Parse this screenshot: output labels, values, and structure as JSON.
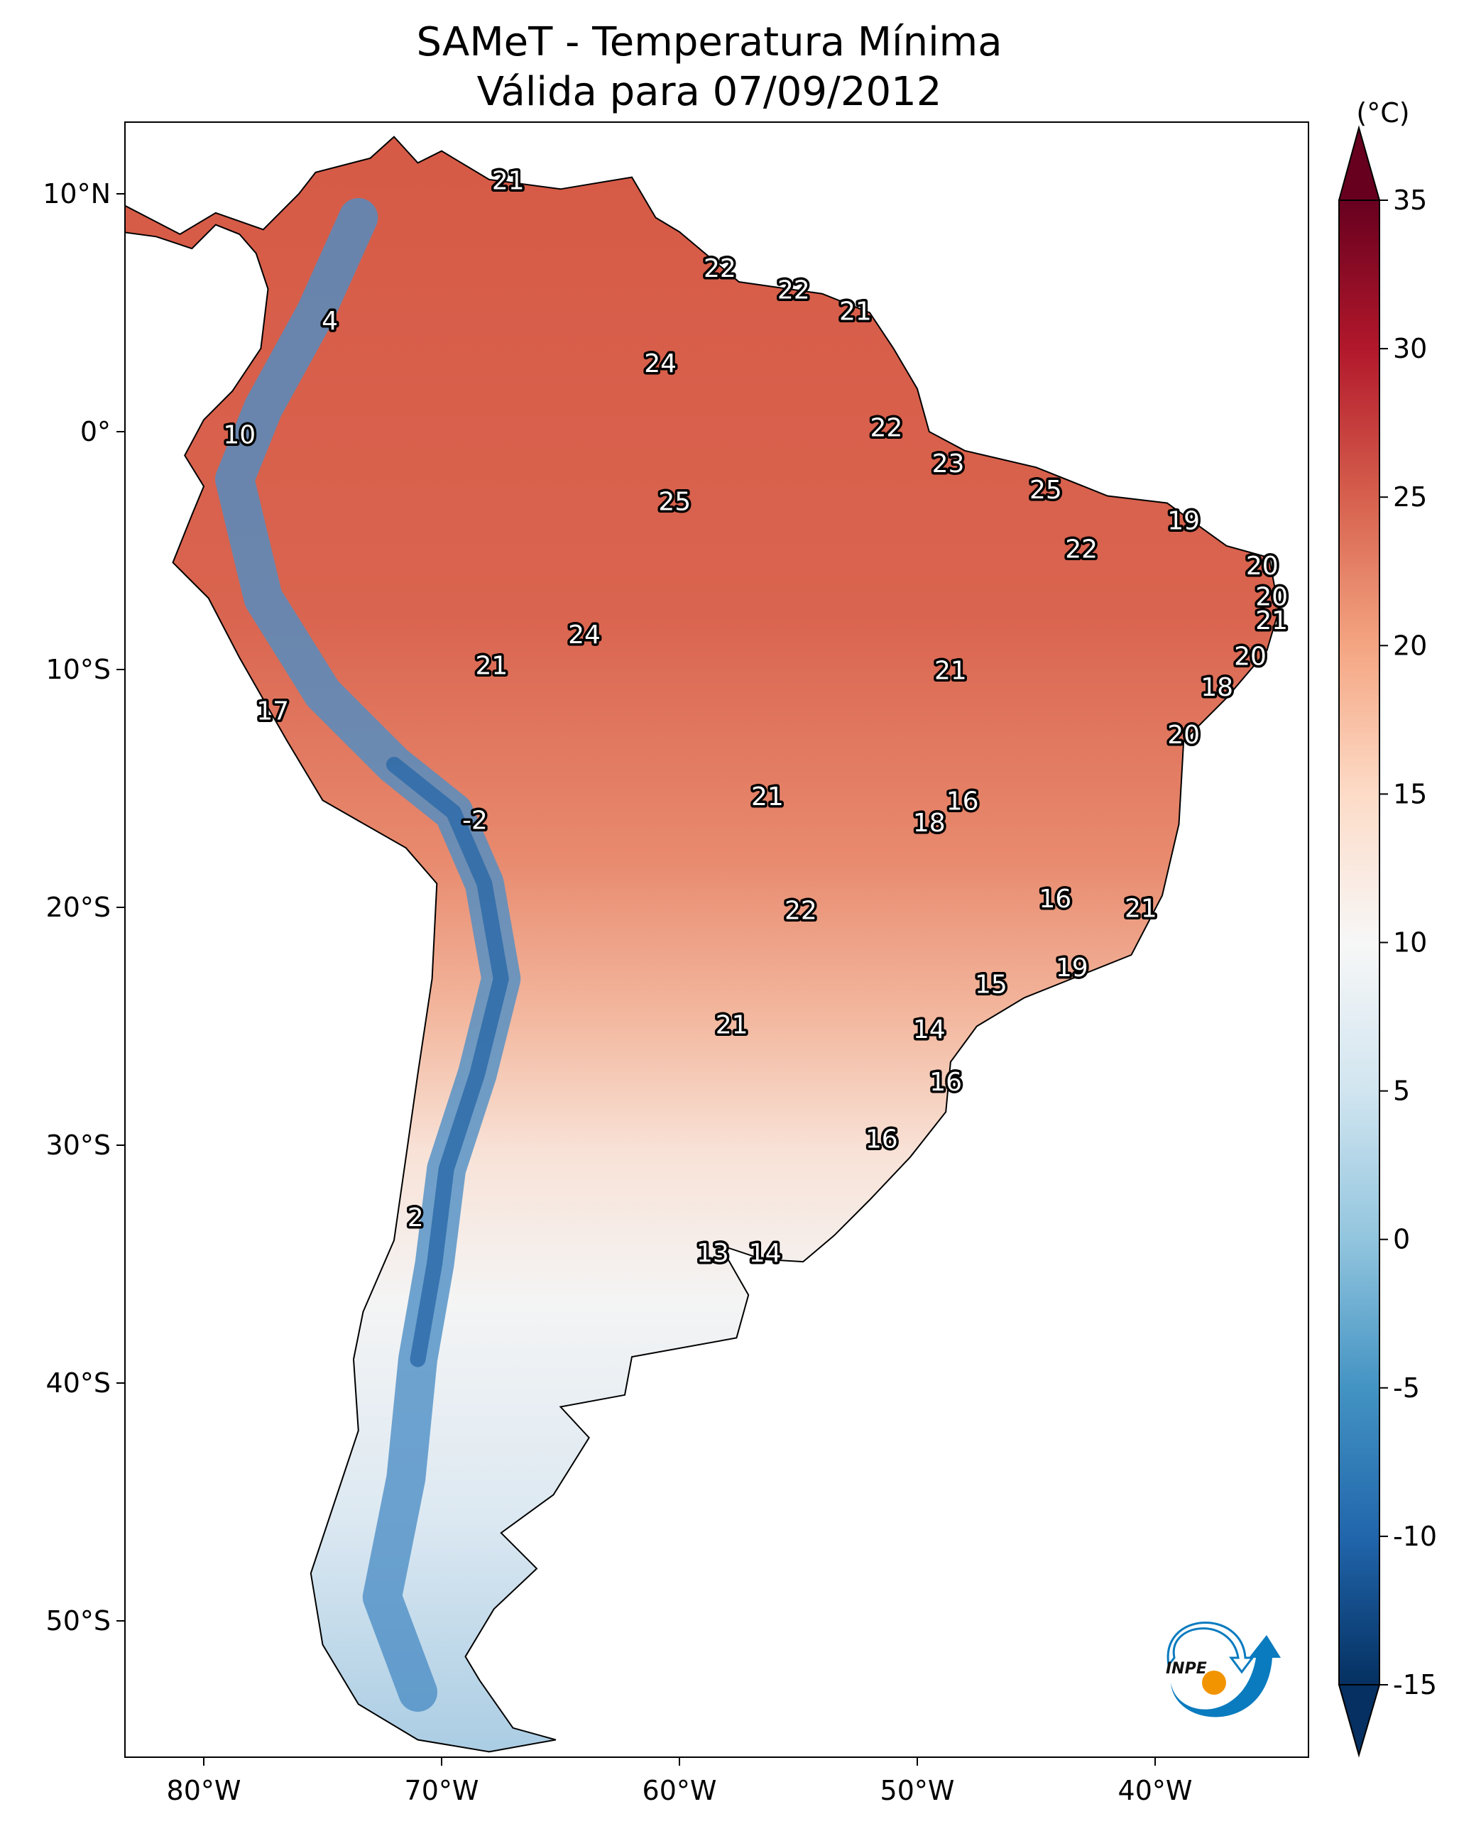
{
  "title": {
    "line1": "SAMeT - Temperatura Mínima",
    "line2": "Válida para 07/09/2012"
  },
  "chart_data": {
    "type": "heatmap",
    "variable": "Temperatura Mínima",
    "units": "(°C)",
    "extent": {
      "lon": [
        -83.3,
        -33.6
      ],
      "lat": [
        -55.7,
        13.0
      ]
    },
    "x_ticks": [
      {
        "value": -80,
        "label": "80°W"
      },
      {
        "value": -70,
        "label": "70°W"
      },
      {
        "value": -60,
        "label": "60°W"
      },
      {
        "value": -50,
        "label": "50°W"
      },
      {
        "value": -40,
        "label": "40°W"
      }
    ],
    "y_ticks": [
      {
        "value": 10,
        "label": "10°N"
      },
      {
        "value": 0,
        "label": "0°"
      },
      {
        "value": -10,
        "label": "10°S"
      },
      {
        "value": -20,
        "label": "20°S"
      },
      {
        "value": -30,
        "label": "30°S"
      },
      {
        "value": -40,
        "label": "40°S"
      },
      {
        "value": -50,
        "label": "50°S"
      }
    ],
    "colorbar": {
      "range": [
        -15,
        35
      ],
      "ticks": [
        {
          "value": 35,
          "label": "35"
        },
        {
          "value": 30,
          "label": "30"
        },
        {
          "value": 25,
          "label": "25"
        },
        {
          "value": 20,
          "label": "20"
        },
        {
          "value": 15,
          "label": "15"
        },
        {
          "value": 10,
          "label": "10"
        },
        {
          "value": 5,
          "label": "5"
        },
        {
          "value": 0,
          "label": "0"
        },
        {
          "value": -5,
          "label": "-5"
        },
        {
          "value": -10,
          "label": "-10"
        },
        {
          "value": -15,
          "label": "-15"
        }
      ],
      "colormap": [
        "#053061",
        "#2166ac",
        "#4393c3",
        "#92c5de",
        "#d1e5f0",
        "#f7f7f7",
        "#fddbc7",
        "#f4a582",
        "#d6604d",
        "#b2182b",
        "#67001f"
      ]
    },
    "station_labels": [
      {
        "lon": -67.2,
        "lat": 10.5,
        "text": "21"
      },
      {
        "lon": -58.3,
        "lat": 6.8,
        "text": "22"
      },
      {
        "lon": -55.2,
        "lat": 5.9,
        "text": "22"
      },
      {
        "lon": -52.6,
        "lat": 5.0,
        "text": "21"
      },
      {
        "lon": -60.8,
        "lat": 2.8,
        "text": "24"
      },
      {
        "lon": -74.7,
        "lat": 4.6,
        "text": "4"
      },
      {
        "lon": -78.5,
        "lat": -0.2,
        "text": "10"
      },
      {
        "lon": -51.3,
        "lat": 0.1,
        "text": "22"
      },
      {
        "lon": -48.7,
        "lat": -1.4,
        "text": "23"
      },
      {
        "lon": -44.6,
        "lat": -2.5,
        "text": "25"
      },
      {
        "lon": -60.2,
        "lat": -3.0,
        "text": "25"
      },
      {
        "lon": -38.8,
        "lat": -3.8,
        "text": "19"
      },
      {
        "lon": -43.1,
        "lat": -5.0,
        "text": "22"
      },
      {
        "lon": -35.5,
        "lat": -5.7,
        "text": "20"
      },
      {
        "lon": -35.1,
        "lat": -7.0,
        "text": "20"
      },
      {
        "lon": -35.1,
        "lat": -8.0,
        "text": "21"
      },
      {
        "lon": -36.0,
        "lat": -9.5,
        "text": "20"
      },
      {
        "lon": -37.4,
        "lat": -10.8,
        "text": "18"
      },
      {
        "lon": -38.8,
        "lat": -12.8,
        "text": "20"
      },
      {
        "lon": -64.0,
        "lat": -8.6,
        "text": "24"
      },
      {
        "lon": -67.9,
        "lat": -9.9,
        "text": "21"
      },
      {
        "lon": -48.6,
        "lat": -10.1,
        "text": "21"
      },
      {
        "lon": -77.1,
        "lat": -11.8,
        "text": "17"
      },
      {
        "lon": -56.3,
        "lat": -15.4,
        "text": "21"
      },
      {
        "lon": -48.1,
        "lat": -15.6,
        "text": "16"
      },
      {
        "lon": -49.5,
        "lat": -16.5,
        "text": "18"
      },
      {
        "lon": -68.6,
        "lat": -16.4,
        "text": "-2"
      },
      {
        "lon": -44.2,
        "lat": -19.7,
        "text": "16"
      },
      {
        "lon": -40.6,
        "lat": -20.1,
        "text": "21"
      },
      {
        "lon": -54.9,
        "lat": -20.2,
        "text": "22"
      },
      {
        "lon": -43.5,
        "lat": -22.6,
        "text": "19"
      },
      {
        "lon": -46.9,
        "lat": -23.3,
        "text": "15"
      },
      {
        "lon": -57.8,
        "lat": -25.0,
        "text": "21"
      },
      {
        "lon": -49.5,
        "lat": -25.2,
        "text": "14"
      },
      {
        "lon": -48.8,
        "lat": -27.4,
        "text": "16"
      },
      {
        "lon": -51.5,
        "lat": -29.8,
        "text": "16"
      },
      {
        "lon": -71.1,
        "lat": -33.1,
        "text": "2"
      },
      {
        "lon": -58.6,
        "lat": -34.6,
        "text": "13"
      },
      {
        "lon": -56.4,
        "lat": -34.6,
        "text": "14"
      }
    ]
  },
  "logo": {
    "text": "INPE"
  }
}
